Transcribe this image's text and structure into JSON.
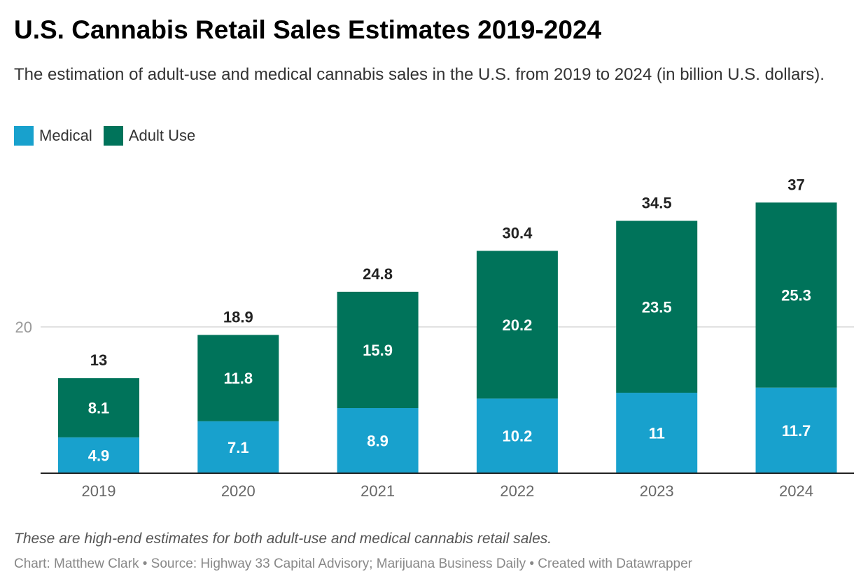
{
  "chart_data": {
    "type": "bar",
    "stacked": true,
    "title": "U.S. Cannabis Retail Sales Estimates 2019-2024",
    "subtitle": "The estimation of adult-use and medical cannabis sales in the U.S. from 2019 to 2024 (in billion U.S. dollars).",
    "categories": [
      "2019",
      "2020",
      "2021",
      "2022",
      "2023",
      "2024"
    ],
    "series": [
      {
        "name": "Medical",
        "color": "#18a1cd",
        "values": [
          4.9,
          7.1,
          8.9,
          10.2,
          11,
          11.7
        ]
      },
      {
        "name": "Adult Use",
        "color": "#00735a",
        "values": [
          8.1,
          11.8,
          15.9,
          20.2,
          23.5,
          25.3
        ]
      }
    ],
    "totals": [
      13,
      18.9,
      24.8,
      30.4,
      34.5,
      37
    ],
    "yticks": [
      20
    ],
    "ylim": [
      0,
      40
    ],
    "grid": true,
    "legend": "top-left"
  },
  "note": "These are high-end estimates for both adult-use and medical cannabis retail sales.",
  "credit": "Chart: Matthew Clark • Source: Highway 33 Capital Advisory; Marijuana Business Daily • Created with Datawrapper"
}
